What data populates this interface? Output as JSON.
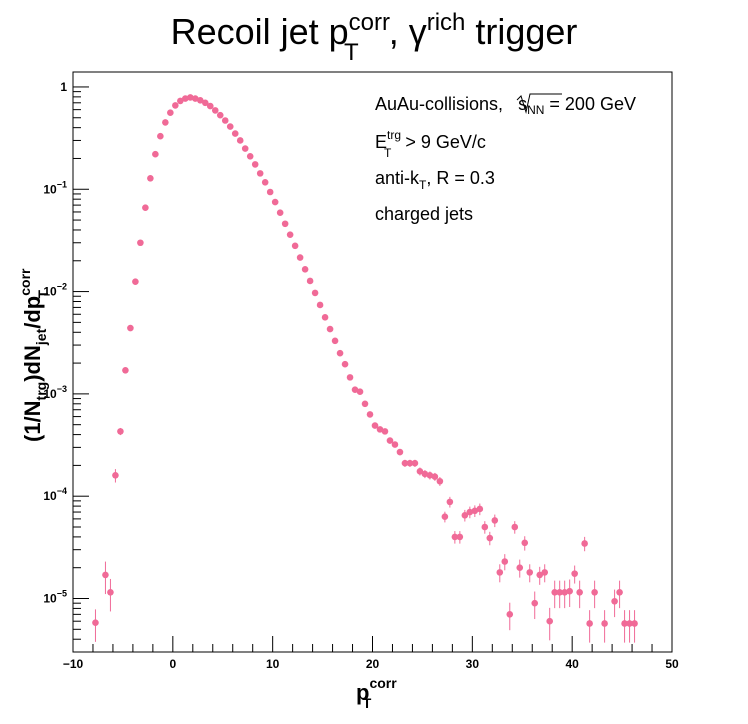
{
  "chart_data": {
    "type": "scatter",
    "title": {
      "main": "Recoil jet p",
      "sup": "corr",
      "sub": "T",
      "mid": ", γ",
      "sup2": "rich",
      "tail": " trigger"
    },
    "xlabel": {
      "main": "p",
      "sup": "corr",
      "sub": "T"
    },
    "ylabel": {
      "p1": "(1/N",
      "sub1": "trg",
      "p2": ")dN",
      "sub2": "jet",
      "p3": "/dp",
      "sup3": "corr",
      "sub3": "T"
    },
    "xlim": [
      -10,
      50
    ],
    "ylim": [
      3e-06,
      1.4
    ],
    "log_y": true,
    "grid": false,
    "color": "#f06a97",
    "x_ticks": [
      "−10",
      "0",
      "10",
      "20",
      "30",
      "40",
      "50"
    ],
    "y_ticks": [
      {
        "base": "10",
        "exp": "−5",
        "value": 1e-05
      },
      {
        "base": "10",
        "exp": "−4",
        "value": 0.0001
      },
      {
        "base": "10",
        "exp": "−3",
        "value": 0.001
      },
      {
        "base": "10",
        "exp": "−2",
        "value": 0.01
      },
      {
        "base": "10",
        "exp": "−1",
        "value": 0.1
      },
      {
        "base": "1",
        "exp": "",
        "value": 1
      }
    ],
    "annotations": {
      "line1_pre": "AuAu-collisions, ",
      "line1_sqrt": "s",
      "line1_sqrt_sub": "NN",
      "line1_post": " = 200 GeV",
      "line2_main": "E",
      "line2_sup": "trg",
      "line2_sub": "T",
      "line2_post": " > 9 GeV/c",
      "line3_pre": "anti-k",
      "line3_sub": "T",
      "line3_post": ", R = 0.3",
      "line4": "charged jets"
    },
    "points": [
      [
        -7.75,
        5.8e-06,
        0.35
      ],
      [
        -6.75,
        1.7e-05,
        0.35
      ],
      [
        -6.25,
        1.15e-05,
        0.35
      ],
      [
        -5.75,
        0.00016,
        0.15
      ],
      [
        -5.25,
        0.00043,
        0.08
      ],
      [
        -4.75,
        0.0017,
        0.05
      ],
      [
        -4.25,
        0.0044,
        0.03
      ],
      [
        -3.75,
        0.0125,
        0.02
      ],
      [
        -3.25,
        0.03,
        0.02
      ],
      [
        -2.75,
        0.066,
        0.02
      ],
      [
        -2.25,
        0.128,
        0.02
      ],
      [
        -1.75,
        0.22,
        0.02
      ],
      [
        -1.25,
        0.33,
        0.02
      ],
      [
        -0.75,
        0.45,
        0.02
      ],
      [
        -0.25,
        0.56,
        0.02
      ],
      [
        0.25,
        0.66,
        0.02
      ],
      [
        0.75,
        0.73,
        0.02
      ],
      [
        1.25,
        0.77,
        0.02
      ],
      [
        1.75,
        0.79,
        0.02
      ],
      [
        2.25,
        0.77,
        0.02
      ],
      [
        2.75,
        0.74,
        0.02
      ],
      [
        3.25,
        0.7,
        0.02
      ],
      [
        3.75,
        0.65,
        0.02
      ],
      [
        4.25,
        0.59,
        0.02
      ],
      [
        4.75,
        0.53,
        0.02
      ],
      [
        5.25,
        0.47,
        0.02
      ],
      [
        5.75,
        0.41,
        0.02
      ],
      [
        6.25,
        0.35,
        0.02
      ],
      [
        6.75,
        0.3,
        0.02
      ],
      [
        7.25,
        0.25,
        0.02
      ],
      [
        7.75,
        0.21,
        0.02
      ],
      [
        8.25,
        0.175,
        0.02
      ],
      [
        8.75,
        0.143,
        0.02
      ],
      [
        9.25,
        0.117,
        0.02
      ],
      [
        9.75,
        0.094,
        0.02
      ],
      [
        10.25,
        0.075,
        0.02
      ],
      [
        10.75,
        0.059,
        0.02
      ],
      [
        11.25,
        0.046,
        0.02
      ],
      [
        11.75,
        0.036,
        0.02
      ],
      [
        12.25,
        0.028,
        0.02
      ],
      [
        12.75,
        0.0215,
        0.02
      ],
      [
        13.25,
        0.0165,
        0.02
      ],
      [
        13.75,
        0.0127,
        0.02
      ],
      [
        14.25,
        0.0097,
        0.02
      ],
      [
        14.75,
        0.0074,
        0.03
      ],
      [
        15.25,
        0.0056,
        0.03
      ],
      [
        15.75,
        0.0043,
        0.03
      ],
      [
        16.25,
        0.0033,
        0.03
      ],
      [
        16.75,
        0.0025,
        0.03
      ],
      [
        17.25,
        0.00195,
        0.03
      ],
      [
        17.75,
        0.00145,
        0.04
      ],
      [
        18.25,
        0.0011,
        0.04
      ],
      [
        18.75,
        0.00105,
        0.04
      ],
      [
        19.25,
        0.0008,
        0.05
      ],
      [
        19.75,
        0.00063,
        0.05
      ],
      [
        20.25,
        0.00049,
        0.06
      ],
      [
        20.75,
        0.00045,
        0.06
      ],
      [
        21.25,
        0.00043,
        0.06
      ],
      [
        21.75,
        0.00035,
        0.07
      ],
      [
        22.25,
        0.00032,
        0.07
      ],
      [
        22.75,
        0.00027,
        0.07
      ],
      [
        23.25,
        0.00021,
        0.08
      ],
      [
        23.75,
        0.00021,
        0.08
      ],
      [
        24.25,
        0.00021,
        0.08
      ],
      [
        24.75,
        0.000175,
        0.09
      ],
      [
        25.25,
        0.000165,
        0.09
      ],
      [
        25.75,
        0.00016,
        0.09
      ],
      [
        26.25,
        0.000155,
        0.09
      ],
      [
        26.75,
        0.00014,
        0.1
      ],
      [
        27.25,
        6.3e-05,
        0.12
      ],
      [
        27.75,
        8.8e-05,
        0.12
      ],
      [
        28.25,
        4e-05,
        0.14
      ],
      [
        28.75,
        4e-05,
        0.14
      ],
      [
        29.25,
        6.5e-05,
        0.13
      ],
      [
        29.75,
        7e-05,
        0.13
      ],
      [
        30.25,
        7.2e-05,
        0.13
      ],
      [
        30.75,
        7.5e-05,
        0.13
      ],
      [
        31.25,
        5e-05,
        0.14
      ],
      [
        31.75,
        3.9e-05,
        0.15
      ],
      [
        32.25,
        5.8e-05,
        0.14
      ],
      [
        32.75,
        1.8e-05,
        0.2
      ],
      [
        33.25,
        2.3e-05,
        0.18
      ],
      [
        33.75,
        7e-06,
        0.3
      ],
      [
        34.25,
        5e-05,
        0.14
      ],
      [
        34.75,
        2e-05,
        0.2
      ],
      [
        35.25,
        3.5e-05,
        0.16
      ],
      [
        35.75,
        1.8e-05,
        0.2
      ],
      [
        36.25,
        9e-06,
        0.3
      ],
      [
        36.75,
        1.7e-05,
        0.2
      ],
      [
        37.25,
        1.8e-05,
        0.2
      ],
      [
        37.75,
        6e-06,
        0.35
      ],
      [
        38.25,
        1.15e-05,
        0.3
      ],
      [
        38.75,
        1.15e-05,
        0.3
      ],
      [
        39.25,
        1.15e-05,
        0.3
      ],
      [
        39.75,
        1.18e-05,
        0.3
      ],
      [
        40.25,
        1.75e-05,
        0.2
      ],
      [
        40.75,
        1.15e-05,
        0.3
      ],
      [
        41.25,
        3.45e-05,
        0.16
      ],
      [
        41.75,
        5.7e-06,
        0.35
      ],
      [
        42.25,
        1.15e-05,
        0.3
      ],
      [
        43.25,
        5.7e-06,
        0.35
      ],
      [
        44.25,
        9.4e-06,
        0.3
      ],
      [
        44.75,
        1.15e-05,
        0.3
      ],
      [
        45.25,
        5.7e-06,
        0.35
      ],
      [
        45.75,
        5.7e-06,
        0.35
      ],
      [
        46.25,
        5.7e-06,
        0.35
      ]
    ]
  }
}
